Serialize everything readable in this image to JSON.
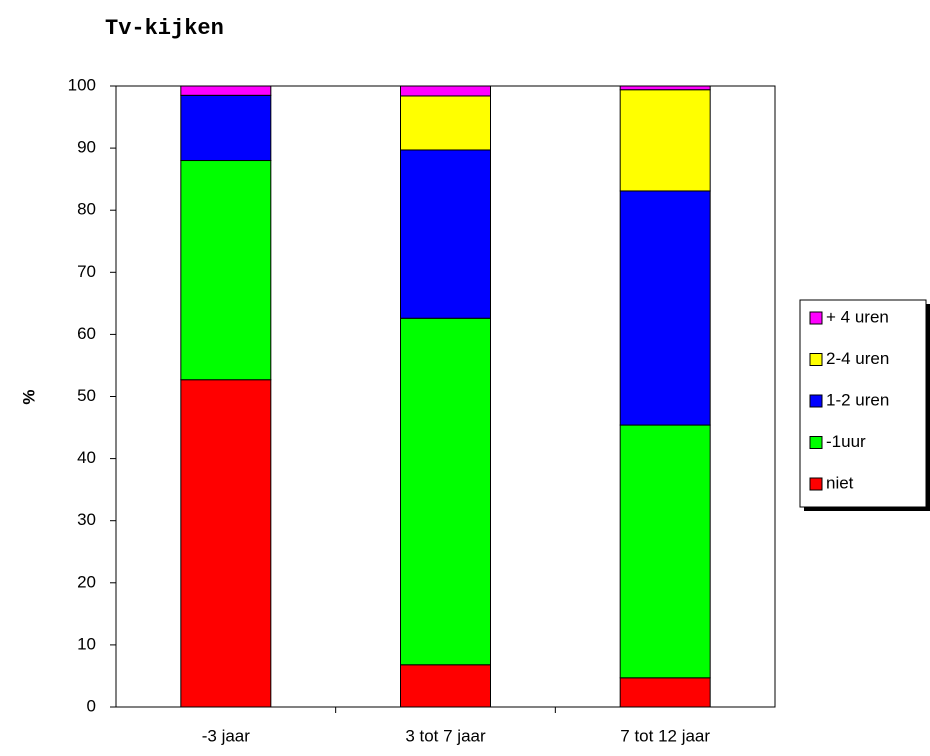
{
  "chart_data": {
    "type": "stacked_bar",
    "title": "Tv-kijken",
    "y_label": "%",
    "categories": [
      "-3 jaar",
      "3 tot 7 jaar",
      "7 tot 12 jaar"
    ],
    "series": [
      {
        "name": "niet",
        "color": "#ff0000",
        "values": [
          52.7,
          6.8,
          4.7
        ]
      },
      {
        "name": "-1uur",
        "color": "#00ff00",
        "values": [
          35.3,
          55.8,
          40.7
        ]
      },
      {
        "name": "1-2 uren",
        "color": "#0000ff",
        "values": [
          10.5,
          27.1,
          37.7
        ]
      },
      {
        "name": "2-4 uren",
        "color": "#ffff00",
        "values": [
          0,
          8.7,
          16.3
        ]
      },
      {
        "name": "+ 4 uren",
        "color": "#ff00ff",
        "values": [
          1.5,
          1.6,
          0.6
        ]
      }
    ],
    "ylim": [
      0,
      100
    ],
    "yticks": [
      0,
      10,
      20,
      30,
      40,
      50,
      60,
      70,
      80,
      90,
      100
    ],
    "grid": false,
    "legend": "right"
  }
}
